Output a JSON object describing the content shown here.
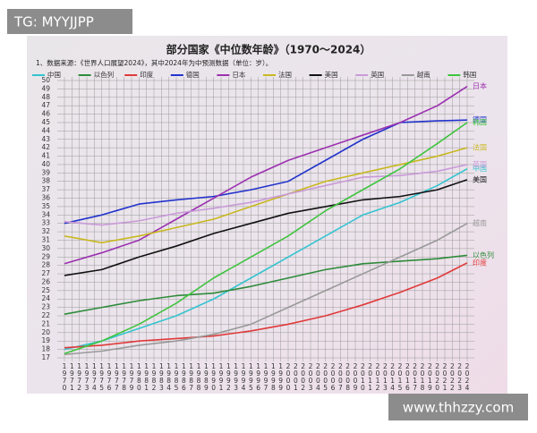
{
  "watermark_top": "TG: MYYJJPP",
  "watermark_bottom": "www.thhzzy.com",
  "chart_data": {
    "type": "line",
    "title": "部分国家《中位数年龄》（1970～2024）",
    "note": "1、数据来源：《世界人口展望2024》，其中2024年为中预测数据（单位：岁）。",
    "x": [
      1970,
      1975,
      1980,
      1985,
      1990,
      1995,
      2000,
      2005,
      2010,
      2015,
      2020,
      2024
    ],
    "xlim": [
      1970,
      2024
    ],
    "xticks": [
      1970,
      1971,
      1972,
      1973,
      1974,
      1975,
      1976,
      1977,
      1978,
      1979,
      1980,
      1981,
      1982,
      1983,
      1984,
      1985,
      1986,
      1987,
      1988,
      1989,
      1990,
      1991,
      1992,
      1993,
      1994,
      1995,
      1996,
      1997,
      1998,
      1999,
      2000,
      2001,
      2002,
      2003,
      2004,
      2005,
      2006,
      2007,
      2008,
      2009,
      2010,
      2011,
      2012,
      2013,
      2014,
      2015,
      2016,
      2017,
      2018,
      2019,
      2020,
      2021,
      2022,
      2023,
      2024
    ],
    "ylim": [
      17,
      50
    ],
    "yticks": [
      17,
      18,
      19,
      20,
      21,
      22,
      23,
      24,
      25,
      26,
      27,
      28,
      29,
      30,
      31,
      32,
      33,
      34,
      35,
      36,
      37,
      38,
      39,
      40,
      41,
      42,
      43,
      44,
      45,
      46,
      47,
      48,
      49,
      50
    ],
    "grid": true,
    "legend": "top",
    "series": [
      {
        "name": "中国",
        "color": "#33c4d0",
        "values": [
          18.0,
          19.0,
          20.5,
          22.0,
          24.0,
          26.5,
          29.0,
          31.5,
          34.0,
          35.5,
          37.5,
          39.5
        ]
      },
      {
        "name": "以色列",
        "color": "#2e8b3a",
        "values": [
          22.2,
          23.0,
          23.8,
          24.4,
          24.7,
          25.5,
          26.5,
          27.5,
          28.2,
          28.5,
          28.8,
          29.2
        ]
      },
      {
        "name": "印度",
        "color": "#e03a3a",
        "values": [
          18.2,
          18.5,
          19.0,
          19.3,
          19.6,
          20.2,
          21.0,
          22.0,
          23.3,
          24.8,
          26.5,
          28.3
        ]
      },
      {
        "name": "德国",
        "color": "#2233cc",
        "values": [
          33.0,
          34.0,
          35.3,
          35.8,
          36.2,
          37.0,
          38.0,
          40.5,
          43.0,
          45.0,
          45.2,
          45.3
        ]
      },
      {
        "name": "日本",
        "color": "#9b30b0",
        "values": [
          28.2,
          29.5,
          31.0,
          33.5,
          36.0,
          38.5,
          40.5,
          42.0,
          43.5,
          45.0,
          47.0,
          49.3
        ]
      },
      {
        "name": "法国",
        "color": "#c8b820",
        "values": [
          31.5,
          30.7,
          31.5,
          32.5,
          33.5,
          35.0,
          36.5,
          38.0,
          39.0,
          40.0,
          41.0,
          42.0
        ]
      },
      {
        "name": "美国",
        "color": "#111111",
        "values": [
          26.8,
          27.5,
          29.0,
          30.3,
          31.8,
          33.0,
          34.2,
          35.0,
          35.8,
          36.2,
          37.0,
          38.2
        ]
      },
      {
        "name": "英国",
        "color": "#c99ad8",
        "values": [
          33.2,
          32.8,
          33.3,
          34.2,
          34.8,
          35.5,
          36.5,
          37.5,
          38.5,
          38.7,
          39.2,
          40.0
        ]
      },
      {
        "name": "越南",
        "color": "#999999",
        "values": [
          17.4,
          17.8,
          18.5,
          19.0,
          19.8,
          21.0,
          23.0,
          25.0,
          27.0,
          29.0,
          31.0,
          33.0
        ]
      },
      {
        "name": "韩国",
        "color": "#3ec43e",
        "values": [
          17.5,
          19.0,
          21.0,
          23.5,
          26.5,
          29.0,
          31.5,
          34.5,
          37.0,
          39.5,
          42.5,
          45.0
        ]
      }
    ]
  }
}
